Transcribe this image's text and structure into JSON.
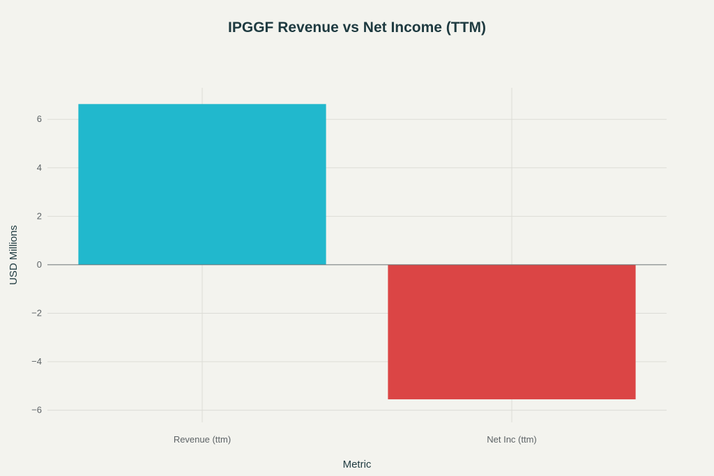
{
  "chart_data": {
    "type": "bar",
    "title": "IPGGF Revenue vs Net Income (TTM)",
    "xlabel": "Metric",
    "ylabel": "USD Millions",
    "categories": [
      "Revenue (ttm)",
      "Net Inc (ttm)"
    ],
    "values": [
      6.63,
      -5.55
    ],
    "colors": [
      "#21b8cd",
      "#db4545"
    ],
    "ylim": [
      -6.5,
      7.3
    ],
    "yticks": [
      6,
      4,
      2,
      0,
      -2,
      -4,
      -6
    ],
    "ytick_labels": [
      "6",
      "4",
      "2",
      "0",
      "−2",
      "−4",
      "−6"
    ],
    "grid": true,
    "legend": "none"
  }
}
